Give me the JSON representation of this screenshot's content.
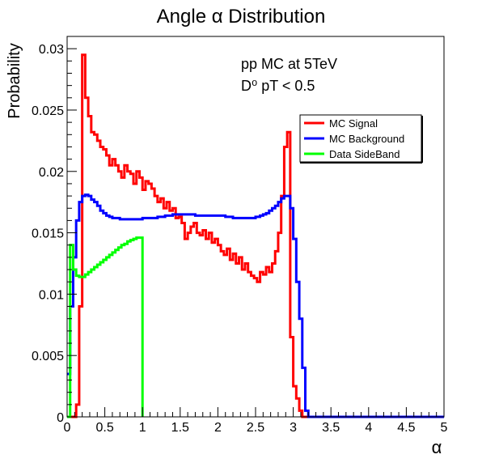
{
  "chart_data": {
    "type": "line",
    "title": "Angle α Distribution",
    "xlabel": "α",
    "ylabel": "Probability",
    "xlim": [
      0,
      5
    ],
    "ylim": [
      0,
      0.031
    ],
    "x_ticks": [
      "0",
      "0.5",
      "1",
      "1.5",
      "2",
      "2.5",
      "3",
      "3.5",
      "4",
      "4.5",
      "5"
    ],
    "y_ticks": [
      "0",
      "0.005",
      "0.01",
      "0.015",
      "0.02",
      "0.025",
      "0.03"
    ],
    "annotation_line1": "pp MC at 5TeV",
    "annotation_line2": "D⁰ pT < 0.5",
    "legend_position": "top-right",
    "grid": false,
    "series": [
      {
        "name": "MC Signal",
        "color": "#ff0000",
        "points": [
          [
            0.0,
            0.0
          ],
          [
            0.04,
            0.0
          ],
          [
            0.08,
            0.0
          ],
          [
            0.12,
            0.001
          ],
          [
            0.16,
            0.009
          ],
          [
            0.2,
            0.0295
          ],
          [
            0.24,
            0.026
          ],
          [
            0.28,
            0.0245
          ],
          [
            0.32,
            0.0232
          ],
          [
            0.36,
            0.023
          ],
          [
            0.4,
            0.0225
          ],
          [
            0.44,
            0.022
          ],
          [
            0.48,
            0.0218
          ],
          [
            0.52,
            0.0213
          ],
          [
            0.56,
            0.0205
          ],
          [
            0.6,
            0.021
          ],
          [
            0.64,
            0.0205
          ],
          [
            0.68,
            0.02
          ],
          [
            0.72,
            0.0195
          ],
          [
            0.76,
            0.0205
          ],
          [
            0.8,
            0.02
          ],
          [
            0.84,
            0.0198
          ],
          [
            0.88,
            0.019
          ],
          [
            0.92,
            0.02
          ],
          [
            0.96,
            0.0195
          ],
          [
            1.0,
            0.0185
          ],
          [
            1.04,
            0.0192
          ],
          [
            1.08,
            0.019
          ],
          [
            1.12,
            0.0186
          ],
          [
            1.16,
            0.018
          ],
          [
            1.2,
            0.0175
          ],
          [
            1.24,
            0.0178
          ],
          [
            1.28,
            0.017
          ],
          [
            1.32,
            0.0175
          ],
          [
            1.36,
            0.0168
          ],
          [
            1.4,
            0.017
          ],
          [
            1.44,
            0.0162
          ],
          [
            1.48,
            0.0163
          ],
          [
            1.52,
            0.0158
          ],
          [
            1.56,
            0.0145
          ],
          [
            1.6,
            0.015
          ],
          [
            1.64,
            0.0155
          ],
          [
            1.68,
            0.0158
          ],
          [
            1.72,
            0.015
          ],
          [
            1.76,
            0.0148
          ],
          [
            1.8,
            0.0152
          ],
          [
            1.84,
            0.0145
          ],
          [
            1.88,
            0.015
          ],
          [
            1.92,
            0.0142
          ],
          [
            1.96,
            0.0145
          ],
          [
            2.0,
            0.014
          ],
          [
            2.04,
            0.0135
          ],
          [
            2.08,
            0.0132
          ],
          [
            2.12,
            0.0137
          ],
          [
            2.16,
            0.0128
          ],
          [
            2.2,
            0.0133
          ],
          [
            2.24,
            0.0125
          ],
          [
            2.28,
            0.013
          ],
          [
            2.32,
            0.012
          ],
          [
            2.36,
            0.0125
          ],
          [
            2.4,
            0.0118
          ],
          [
            2.44,
            0.0115
          ],
          [
            2.48,
            0.0113
          ],
          [
            2.52,
            0.011
          ],
          [
            2.56,
            0.0118
          ],
          [
            2.6,
            0.0116
          ],
          [
            2.64,
            0.0122
          ],
          [
            2.68,
            0.0118
          ],
          [
            2.72,
            0.0125
          ],
          [
            2.76,
            0.0135
          ],
          [
            2.8,
            0.015
          ],
          [
            2.84,
            0.018
          ],
          [
            2.88,
            0.022
          ],
          [
            2.92,
            0.0232
          ],
          [
            2.96,
            0.0065
          ],
          [
            3.0,
            0.0025
          ],
          [
            3.04,
            0.0015
          ],
          [
            3.08,
            0.0005
          ],
          [
            3.12,
            0.0
          ],
          [
            3.16,
            0.0
          ],
          [
            5.0,
            0.0
          ]
        ]
      },
      {
        "name": "MC Background",
        "color": "#0000ff",
        "points": [
          [
            0.0,
            0.0035
          ],
          [
            0.04,
            0.009
          ],
          [
            0.08,
            0.013
          ],
          [
            0.12,
            0.016
          ],
          [
            0.16,
            0.0175
          ],
          [
            0.2,
            0.018
          ],
          [
            0.24,
            0.0181
          ],
          [
            0.28,
            0.018
          ],
          [
            0.32,
            0.0177
          ],
          [
            0.36,
            0.0175
          ],
          [
            0.4,
            0.0172
          ],
          [
            0.44,
            0.0168
          ],
          [
            0.48,
            0.0166
          ],
          [
            0.52,
            0.0164
          ],
          [
            0.56,
            0.0163
          ],
          [
            0.6,
            0.0162
          ],
          [
            0.7,
            0.0161
          ],
          [
            0.8,
            0.0161
          ],
          [
            0.9,
            0.0161
          ],
          [
            1.0,
            0.0162
          ],
          [
            1.1,
            0.0162
          ],
          [
            1.2,
            0.0163
          ],
          [
            1.3,
            0.0164
          ],
          [
            1.4,
            0.0165
          ],
          [
            1.5,
            0.0165
          ],
          [
            1.6,
            0.0165
          ],
          [
            1.7,
            0.0164
          ],
          [
            1.8,
            0.0164
          ],
          [
            1.9,
            0.0164
          ],
          [
            2.0,
            0.0164
          ],
          [
            2.1,
            0.0163
          ],
          [
            2.2,
            0.0162
          ],
          [
            2.3,
            0.0162
          ],
          [
            2.4,
            0.0162
          ],
          [
            2.5,
            0.0163
          ],
          [
            2.56,
            0.0164
          ],
          [
            2.6,
            0.0165
          ],
          [
            2.64,
            0.0166
          ],
          [
            2.68,
            0.0168
          ],
          [
            2.72,
            0.017
          ],
          [
            2.76,
            0.0172
          ],
          [
            2.8,
            0.0175
          ],
          [
            2.84,
            0.0178
          ],
          [
            2.88,
            0.018
          ],
          [
            2.92,
            0.018
          ],
          [
            2.96,
            0.017
          ],
          [
            3.0,
            0.0145
          ],
          [
            3.04,
            0.011
          ],
          [
            3.08,
            0.008
          ],
          [
            3.12,
            0.004
          ],
          [
            3.16,
            0.0005
          ],
          [
            3.2,
            0.0
          ],
          [
            5.0,
            0.0
          ]
        ]
      },
      {
        "name": "Data SideBand",
        "color": "#00ff00",
        "points": [
          [
            0.0,
            0.0
          ],
          [
            0.04,
            0.014
          ],
          [
            0.08,
            0.012
          ],
          [
            0.12,
            0.0115
          ],
          [
            0.16,
            0.0114
          ],
          [
            0.2,
            0.0114
          ],
          [
            0.24,
            0.0116
          ],
          [
            0.28,
            0.0118
          ],
          [
            0.32,
            0.012
          ],
          [
            0.36,
            0.0122
          ],
          [
            0.4,
            0.0124
          ],
          [
            0.44,
            0.0126
          ],
          [
            0.48,
            0.0128
          ],
          [
            0.52,
            0.013
          ],
          [
            0.56,
            0.0132
          ],
          [
            0.6,
            0.0134
          ],
          [
            0.64,
            0.0136
          ],
          [
            0.68,
            0.0138
          ],
          [
            0.72,
            0.014
          ],
          [
            0.76,
            0.0141
          ],
          [
            0.8,
            0.0143
          ],
          [
            0.84,
            0.0144
          ],
          [
            0.88,
            0.0145
          ],
          [
            0.92,
            0.0146
          ],
          [
            0.96,
            0.0146
          ],
          [
            1.0,
            0.0
          ]
        ]
      }
    ]
  }
}
